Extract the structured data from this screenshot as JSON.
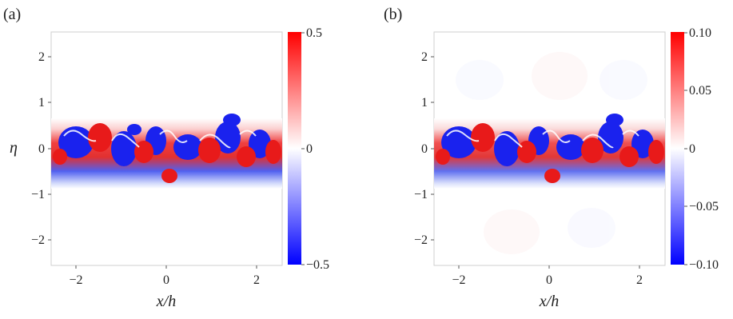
{
  "figure": {
    "panels": [
      {
        "label": "(a)",
        "xlabel": "x/h",
        "ylabel": "η",
        "x_ticks": [
          "−2",
          "0",
          "2"
        ],
        "y_ticks": [
          "2",
          "1",
          "0",
          "−1",
          "−2"
        ],
        "colorbar_ticks": [
          "0.5",
          "0",
          "−0.5"
        ]
      },
      {
        "label": "(b)",
        "xlabel": "x/h",
        "ylabel": "",
        "x_ticks": [
          "−2",
          "0",
          "2"
        ],
        "y_ticks": [
          "2",
          "1",
          "0",
          "−1",
          "−2"
        ],
        "colorbar_ticks": [
          "0.10",
          "0.05",
          "0",
          "−0.05",
          "−0.10"
        ]
      }
    ]
  },
  "chart_data": [
    {
      "type": "heatmap",
      "title": "(a)",
      "xlabel": "x/h",
      "ylabel": "η",
      "xlim": [
        -2.5,
        2.5
      ],
      "ylim": [
        -2.6,
        2.6
      ],
      "x_ticks": [
        -2,
        0,
        2
      ],
      "y_ticks": [
        -2,
        -1,
        0,
        1,
        2
      ],
      "colorbar": {
        "min": -0.5,
        "max": 0.5,
        "ticks": [
          0.5,
          0,
          -0.5
        ],
        "colors": [
          "#0000ff",
          "#ffffff",
          "#ff0000"
        ]
      },
      "grid": false
    },
    {
      "type": "heatmap",
      "title": "(b)",
      "xlabel": "x/h",
      "ylabel": "",
      "xlim": [
        -2.5,
        2.5
      ],
      "ylim": [
        -2.6,
        2.6
      ],
      "x_ticks": [
        -2,
        0,
        2
      ],
      "y_ticks": [
        -2,
        -1,
        0,
        1,
        2
      ],
      "colorbar": {
        "min": -0.1,
        "max": 0.1,
        "ticks": [
          0.1,
          0.05,
          0,
          -0.05,
          -0.1
        ],
        "colors": [
          "#0000ff",
          "#ffffff",
          "#ff0000"
        ]
      },
      "grid": false
    }
  ]
}
